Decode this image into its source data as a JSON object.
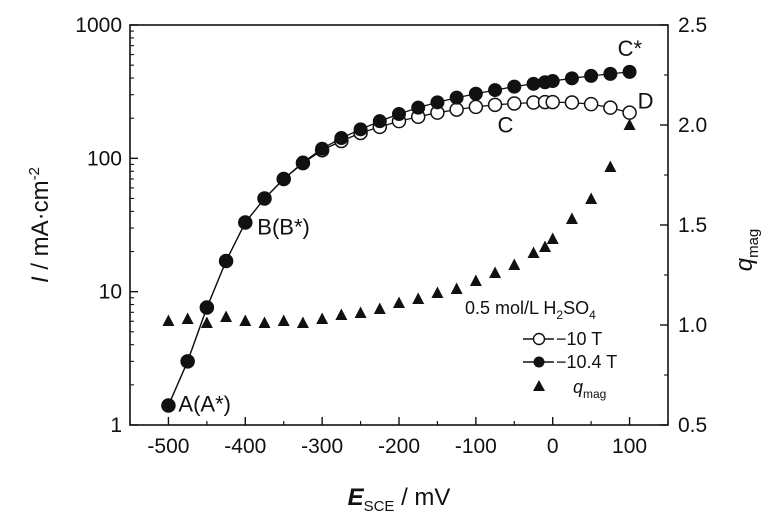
{
  "chart_data": {
    "type": "scatter",
    "xlabel": {
      "main": "E",
      "sub": "SCE",
      "rest": " / mV"
    },
    "ylabel_left": {
      "main": "I",
      "rest": " / mA·cm",
      "sup": "-2"
    },
    "ylabel_right": {
      "main": "q",
      "sub": "mag"
    },
    "x": {
      "range": [
        -550,
        150
      ],
      "ticks": [
        -500,
        -400,
        -300,
        -200,
        -100,
        0,
        100
      ],
      "tick_labels": [
        "-500",
        "-400",
        "-300",
        "-200",
        "-100",
        "0",
        "100"
      ]
    },
    "y_left": {
      "scale": "log",
      "range": [
        1,
        1000
      ],
      "ticks": [
        1,
        10,
        100,
        1000
      ],
      "tick_labels": [
        "1",
        "10",
        "100",
        "1000"
      ]
    },
    "y_right": {
      "scale": "linear",
      "range": [
        0.5,
        2.5
      ],
      "ticks": [
        0.5,
        1.0,
        1.5,
        2.0,
        2.5
      ],
      "tick_labels": [
        "0.5",
        "1.0",
        "1.5",
        "2.0",
        "2.5"
      ]
    },
    "series": [
      {
        "name": "−10 T",
        "axis": "left",
        "marker": "open-circle",
        "line": true,
        "points": [
          [
            -500,
            1.4
          ],
          [
            -475,
            3
          ],
          [
            -450,
            7.6
          ],
          [
            -425,
            17
          ],
          [
            -400,
            33
          ],
          [
            -375,
            50
          ],
          [
            -350,
            70
          ],
          [
            -325,
            92
          ],
          [
            -300,
            115
          ],
          [
            -275,
            135
          ],
          [
            -250,
            155
          ],
          [
            -225,
            172
          ],
          [
            -200,
            190
          ],
          [
            -175,
            205
          ],
          [
            -150,
            220
          ],
          [
            -125,
            232
          ],
          [
            -100,
            243
          ],
          [
            -75,
            252
          ],
          [
            -50,
            258
          ],
          [
            -25,
            262
          ],
          [
            -10,
            264
          ],
          [
            0,
            264
          ],
          [
            25,
            262
          ],
          [
            50,
            255
          ],
          [
            75,
            240
          ],
          [
            100,
            220
          ]
        ]
      },
      {
        "name": "−10.4 T",
        "axis": "left",
        "marker": "filled-circle",
        "line": true,
        "points": [
          [
            -500,
            1.4
          ],
          [
            -475,
            3
          ],
          [
            -450,
            7.6
          ],
          [
            -425,
            17
          ],
          [
            -400,
            33
          ],
          [
            -375,
            50
          ],
          [
            -350,
            70
          ],
          [
            -325,
            93
          ],
          [
            -300,
            118
          ],
          [
            -275,
            142
          ],
          [
            -250,
            165
          ],
          [
            -225,
            190
          ],
          [
            -200,
            215
          ],
          [
            -175,
            240
          ],
          [
            -150,
            263
          ],
          [
            -125,
            285
          ],
          [
            -100,
            305
          ],
          [
            -75,
            325
          ],
          [
            -50,
            345
          ],
          [
            -25,
            362
          ],
          [
            -10,
            372
          ],
          [
            0,
            380
          ],
          [
            25,
            398
          ],
          [
            50,
            415
          ],
          [
            75,
            430
          ],
          [
            100,
            445
          ]
        ]
      },
      {
        "name": "q",
        "name_sub": "mag",
        "axis": "right",
        "marker": "filled-triangle",
        "line": false,
        "points": [
          [
            -500,
            1.02
          ],
          [
            -475,
            1.03
          ],
          [
            -450,
            1.01
          ],
          [
            -425,
            1.04
          ],
          [
            -400,
            1.02
          ],
          [
            -375,
            1.01
          ],
          [
            -350,
            1.02
          ],
          [
            -325,
            1.01
          ],
          [
            -300,
            1.03
          ],
          [
            -275,
            1.05
          ],
          [
            -250,
            1.06
          ],
          [
            -225,
            1.08
          ],
          [
            -200,
            1.11
          ],
          [
            -175,
            1.13
          ],
          [
            -150,
            1.16
          ],
          [
            -125,
            1.18
          ],
          [
            -100,
            1.22
          ],
          [
            -75,
            1.26
          ],
          [
            -50,
            1.3
          ],
          [
            -25,
            1.36
          ],
          [
            -10,
            1.39
          ],
          [
            0,
            1.43
          ],
          [
            25,
            1.53
          ],
          [
            50,
            1.63
          ],
          [
            75,
            1.79
          ],
          [
            100,
            2.0
          ]
        ]
      }
    ],
    "legend": {
      "title": {
        "pre": "0.5 mol/L H",
        "sub1": "2",
        "mid": "SO",
        "sub2": "4"
      },
      "placement": "lower-right"
    },
    "annotations": [
      {
        "text": "A(A*)",
        "x": -500,
        "y": 1.4
      },
      {
        "text": "B(B*)",
        "x": -400,
        "y": 33
      },
      {
        "text": "C",
        "x": -25,
        "y": 262
      },
      {
        "text": "C*",
        "x": 100,
        "y": 445
      },
      {
        "text": "D",
        "x": 100,
        "y": 220
      }
    ],
    "grid": false
  }
}
